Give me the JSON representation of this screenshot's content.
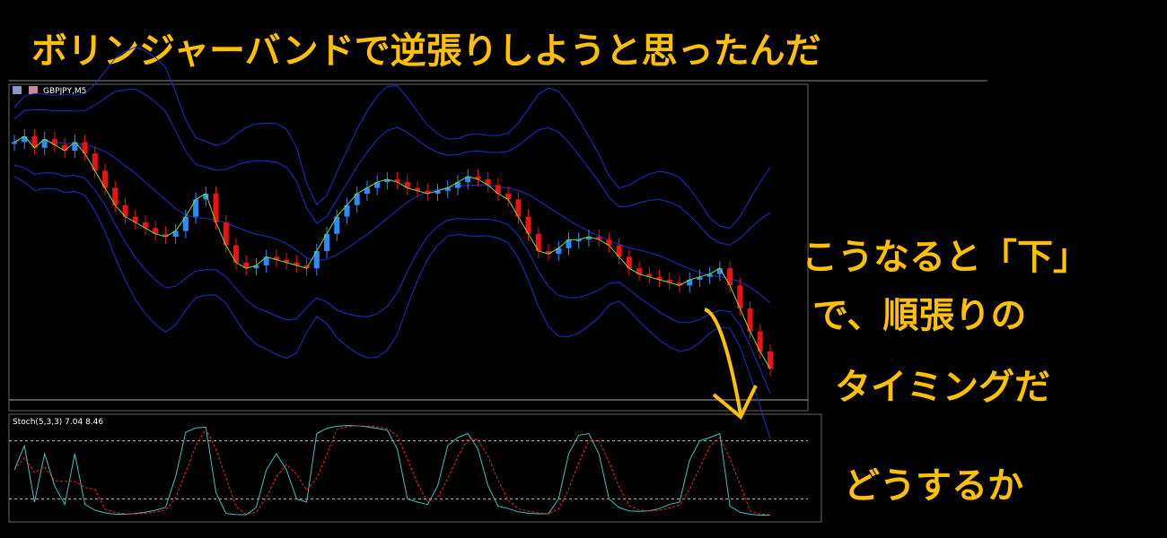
{
  "header": {
    "title": "ボリンジャーバンドで逆張りしようと思ったんだ"
  },
  "chart": {
    "symbol": "GBPJPY,M5",
    "indicator": "Stoch(5,3,3) 7.04 8.46",
    "closes": [
      88,
      90,
      86,
      89,
      87,
      85,
      88,
      84,
      78,
      72,
      66,
      62,
      60,
      58,
      56,
      55,
      57,
      62,
      68,
      70,
      60,
      52,
      46,
      44,
      45,
      48,
      47,
      46,
      45,
      44,
      50,
      56,
      62,
      66,
      70,
      72,
      74,
      75,
      74,
      72,
      71,
      70,
      71,
      72,
      74,
      76,
      75,
      73,
      70,
      68,
      62,
      56,
      50,
      49,
      51,
      54,
      54,
      55,
      54,
      52,
      48,
      44,
      42,
      41,
      40,
      39,
      38,
      40,
      41,
      42,
      44,
      38,
      30,
      22,
      15,
      9
    ],
    "ylim": [
      0,
      100
    ],
    "levels": [
      80,
      20
    ]
  },
  "annotations": [
    "こうなると「下」",
    "で、順張りの",
    "タイミングだ",
    "どうするか"
  ]
}
